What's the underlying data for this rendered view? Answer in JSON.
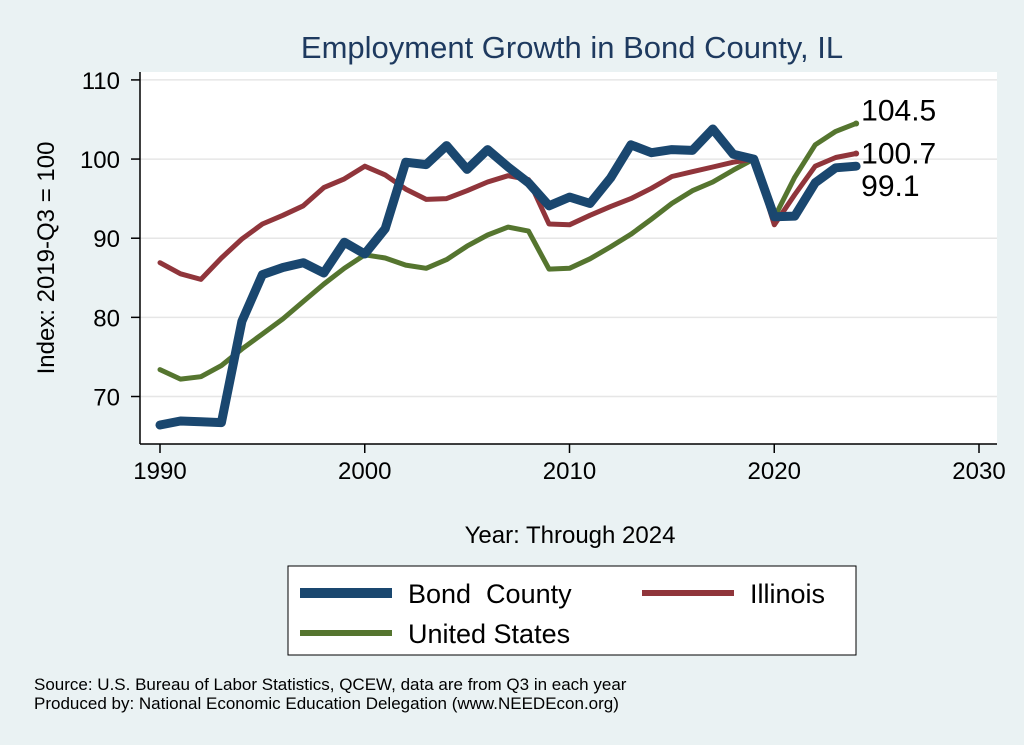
{
  "chart_data": {
    "type": "line",
    "title": "Employment Growth in Bond County, IL",
    "xlabel": "Year: Through 2024",
    "ylabel": "Index: 2019-Q3 = 100",
    "xlim": [
      1990,
      2030
    ],
    "ylim": [
      64,
      111
    ],
    "xticks": [
      1990,
      2000,
      2010,
      2020,
      2030
    ],
    "yticks": [
      70,
      80,
      90,
      100,
      110
    ],
    "grid": true,
    "legend_position": "bottom",
    "x": [
      1990,
      1991,
      1992,
      1993,
      1994,
      1995,
      1996,
      1997,
      1998,
      1999,
      2000,
      2001,
      2002,
      2003,
      2004,
      2005,
      2006,
      2007,
      2008,
      2009,
      2010,
      2011,
      2012,
      2013,
      2014,
      2015,
      2016,
      2017,
      2018,
      2019,
      2020,
      2021,
      2022,
      2023,
      2024
    ],
    "series": [
      {
        "name": "Bond  County",
        "color": "#1a476f",
        "stroke_weight": "thick",
        "values": [
          66.4,
          66.9,
          66.8,
          66.7,
          79.5,
          85.4,
          86.3,
          86.9,
          85.6,
          89.5,
          88.0,
          91.2,
          99.6,
          99.3,
          101.7,
          98.7,
          101.2,
          99.0,
          97.0,
          94.1,
          95.2,
          94.4,
          97.6,
          101.8,
          100.8,
          101.2,
          101.1,
          103.8,
          100.6,
          100.0,
          92.7,
          92.8,
          97.0,
          98.9,
          99.1
        ],
        "end_label": "99.1"
      },
      {
        "name": "Illinois",
        "color": "#90353b",
        "stroke_weight": "medium",
        "values": [
          86.9,
          85.5,
          84.8,
          87.5,
          89.9,
          91.8,
          92.9,
          94.1,
          96.4,
          97.5,
          99.1,
          98.0,
          96.2,
          94.9,
          95.0,
          96.0,
          97.1,
          97.9,
          97.4,
          91.8,
          91.7,
          92.9,
          94.0,
          95.0,
          96.3,
          97.8,
          98.4,
          99.0,
          99.6,
          100.0,
          91.7,
          95.5,
          99.1,
          100.2,
          100.7
        ],
        "end_label": "100.7"
      },
      {
        "name": "United States",
        "color": "#55752f",
        "stroke_weight": "medium",
        "values": [
          73.4,
          72.2,
          72.5,
          73.9,
          76.0,
          77.9,
          79.8,
          82.0,
          84.2,
          86.2,
          87.9,
          87.5,
          86.6,
          86.2,
          87.3,
          89.0,
          90.4,
          91.4,
          90.9,
          86.1,
          86.2,
          87.4,
          88.9,
          90.5,
          92.4,
          94.4,
          96.0,
          97.1,
          98.6,
          100.0,
          92.6,
          97.7,
          101.8,
          103.5,
          104.5
        ],
        "end_label": "104.5"
      }
    ]
  },
  "footer": {
    "source": "Source: U.S. Bureau of Labor Statistics, QCEW, data are from Q3 in each year",
    "produced": "Produced by: National Economic Education Delegation (www.NEEDEcon.org)"
  }
}
